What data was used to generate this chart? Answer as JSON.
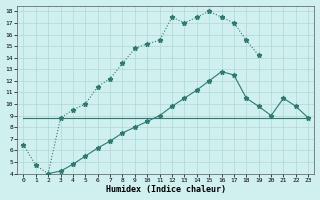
{
  "xlabel": "Humidex (Indice chaleur)",
  "background_color": "#cff0ee",
  "line_color": "#2d7a72",
  "grid_color": "#b0d8d0",
  "xlim": [
    -0.5,
    23.5
  ],
  "ylim": [
    4,
    18.5
  ],
  "xticks": [
    0,
    1,
    2,
    3,
    4,
    5,
    6,
    7,
    8,
    9,
    10,
    11,
    12,
    13,
    14,
    15,
    16,
    17,
    18,
    19,
    20,
    21,
    22,
    23
  ],
  "yticks": [
    4,
    5,
    6,
    7,
    8,
    9,
    10,
    11,
    12,
    13,
    14,
    15,
    16,
    17,
    18
  ],
  "curve1_x": [
    0,
    1,
    2,
    3,
    4,
    5,
    6,
    7,
    8,
    9,
    10,
    11,
    12,
    13,
    14,
    15,
    16,
    17,
    18,
    19
  ],
  "curve1_y": [
    6.5,
    4.7,
    4.0,
    8.8,
    9.5,
    10.0,
    11.5,
    12.2,
    13.5,
    14.8,
    15.2,
    15.5,
    17.5,
    17.0,
    17.5,
    18.0,
    17.5,
    17.0,
    15.5,
    14.2
  ],
  "curve2_x": [
    0,
    23
  ],
  "curve2_y": [
    8.8,
    8.8
  ],
  "curve3_x": [
    2,
    3,
    4,
    5,
    6,
    7,
    8,
    9,
    10,
    11,
    12,
    13,
    14,
    15,
    16,
    17,
    18,
    19,
    20,
    21,
    22,
    23
  ],
  "curve3_y": [
    4.0,
    4.2,
    4.8,
    5.5,
    6.2,
    6.8,
    7.5,
    8.0,
    8.5,
    9.0,
    9.8,
    10.5,
    11.2,
    12.0,
    12.8,
    12.5,
    10.5,
    9.8,
    9.0,
    10.5,
    9.8,
    8.8
  ]
}
